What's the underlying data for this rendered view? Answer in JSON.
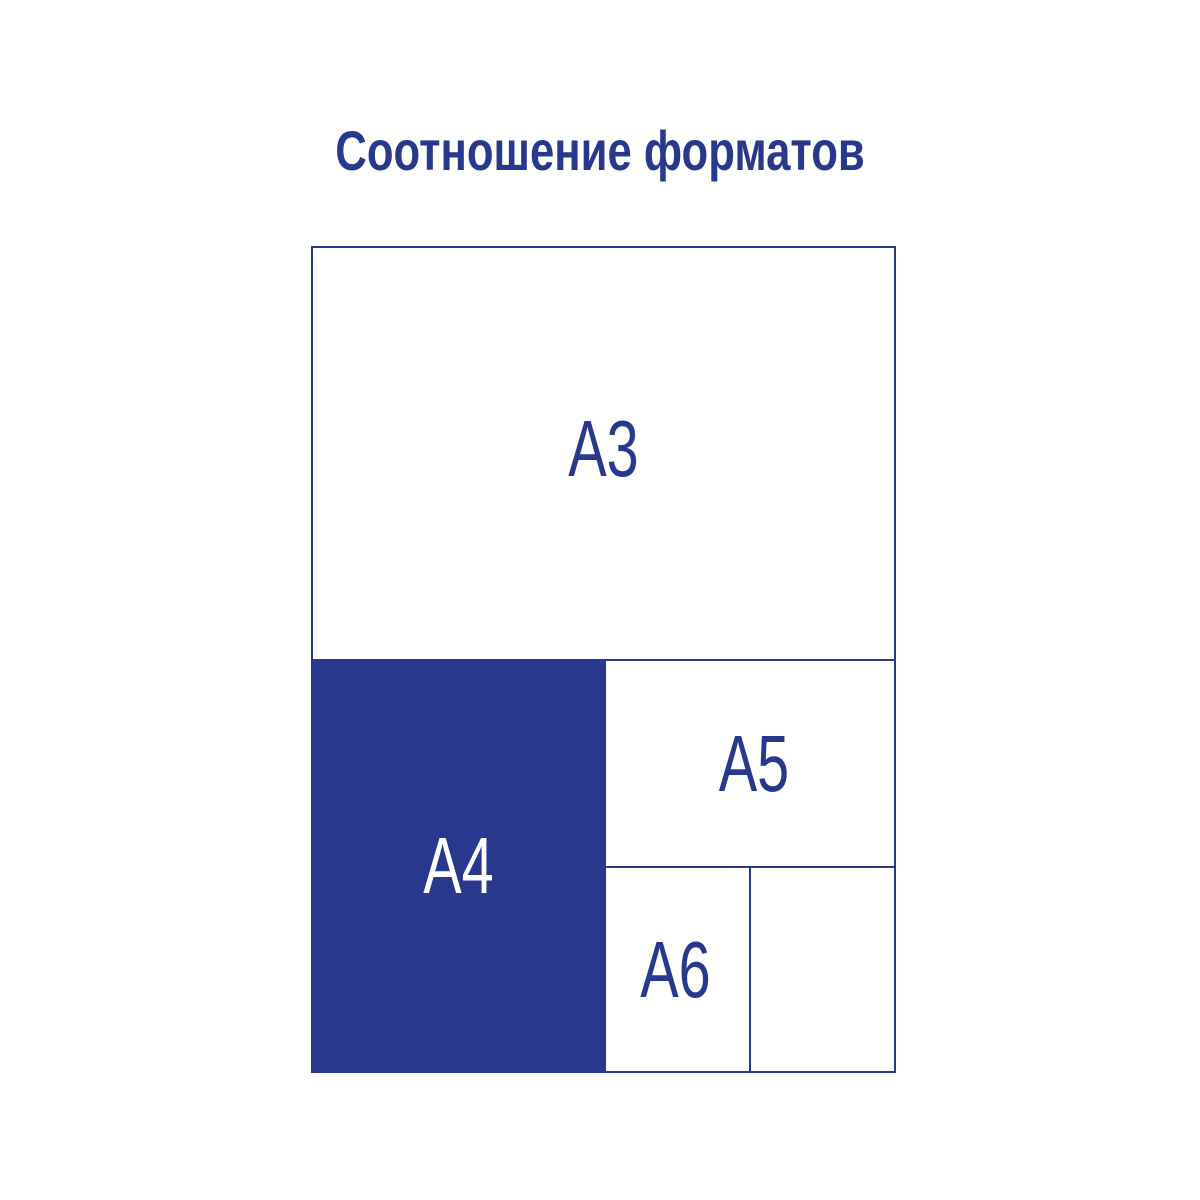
{
  "title": "Соотношение форматов",
  "colors": {
    "accent": "#28388c",
    "background": "#ffffff"
  },
  "formats": [
    {
      "label": "A3",
      "filled": false
    },
    {
      "label": "A4",
      "filled": true
    },
    {
      "label": "A5",
      "filled": false
    },
    {
      "label": "A6",
      "filled": false
    },
    {
      "label": "",
      "filled": false
    }
  ]
}
